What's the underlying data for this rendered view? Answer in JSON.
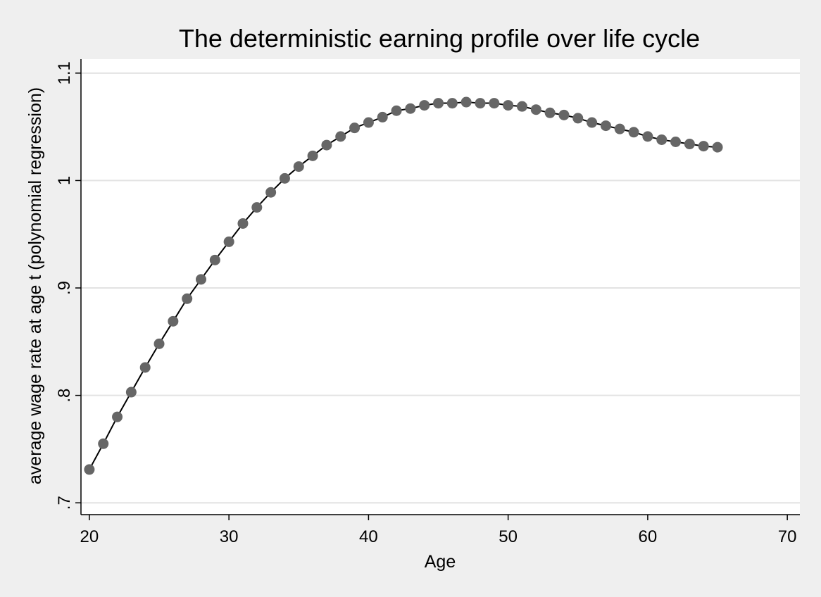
{
  "chart_data": {
    "type": "scatter",
    "title": "The deterministic earning profile over life cycle",
    "xlabel": "Age",
    "ylabel": "average wage rate at age t (polynomial regression)",
    "xlim": [
      19.4,
      70.9
    ],
    "ylim": [
      0.689,
      1.113
    ],
    "x_ticks": [
      20,
      30,
      40,
      50,
      60,
      70
    ],
    "x_tick_labels": [
      "20",
      "30",
      "40",
      "50",
      "60",
      "70"
    ],
    "y_ticks": [
      0.7,
      0.8,
      0.9,
      1.0,
      1.1
    ],
    "y_tick_labels": [
      ".7",
      ".8",
      ".9",
      "1",
      "1.1"
    ],
    "grid": "horizontal",
    "legend": "none",
    "x": [
      20,
      21,
      22,
      23,
      24,
      25,
      26,
      27,
      28,
      29,
      30,
      31,
      32,
      33,
      34,
      35,
      36,
      37,
      38,
      39,
      40,
      41,
      42,
      43,
      44,
      45,
      46,
      47,
      48,
      49,
      50,
      51,
      52,
      53,
      54,
      55,
      56,
      57,
      58,
      59,
      60,
      61,
      62,
      63,
      64,
      65
    ],
    "y": [
      0.731,
      0.755,
      0.78,
      0.803,
      0.826,
      0.848,
      0.869,
      0.89,
      0.908,
      0.926,
      0.943,
      0.96,
      0.975,
      0.989,
      1.002,
      1.013,
      1.023,
      1.033,
      1.041,
      1.049,
      1.054,
      1.059,
      1.065,
      1.067,
      1.07,
      1.072,
      1.072,
      1.073,
      1.072,
      1.072,
      1.07,
      1.069,
      1.066,
      1.063,
      1.061,
      1.058,
      1.054,
      1.051,
      1.048,
      1.045,
      1.041,
      1.038,
      1.036,
      1.034,
      1.032,
      1.031
    ],
    "colors": {
      "background": "#efefef",
      "plot_background": "#ffffff",
      "grid": "#e3e3e3",
      "marker": "#666666",
      "line": "#000000",
      "axis": "#000000"
    }
  }
}
